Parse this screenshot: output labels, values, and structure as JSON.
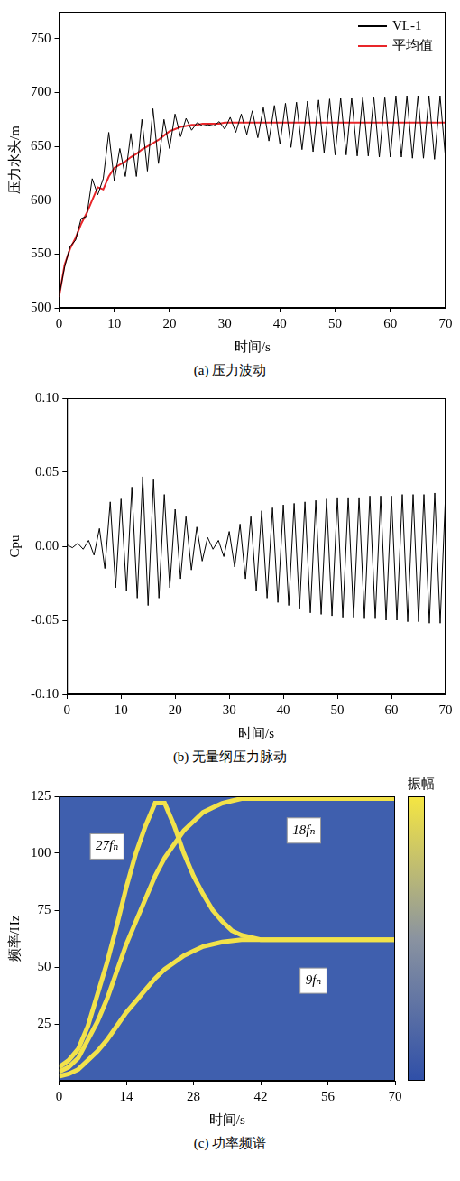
{
  "chart_data": [
    {
      "type": "line",
      "title": "(a) 压力波动",
      "xlabel": "时间/s",
      "ylabel": "压力水头/m",
      "x": [
        0,
        1,
        2,
        3,
        4,
        5,
        6,
        7,
        8,
        9,
        10,
        11,
        12,
        13,
        14,
        15,
        16,
        17,
        18,
        19,
        20,
        21,
        22,
        23,
        24,
        25,
        26,
        27,
        28,
        29,
        30,
        31,
        32,
        33,
        34,
        35,
        36,
        37,
        38,
        39,
        40,
        41,
        42,
        43,
        44,
        45,
        46,
        47,
        48,
        49,
        50,
        51,
        52,
        53,
        54,
        55,
        56,
        57,
        58,
        59,
        60,
        61,
        62,
        63,
        64,
        65,
        66,
        67,
        68,
        69,
        70
      ],
      "series": [
        {
          "name": "VL-1",
          "color": "#000000",
          "values": [
            511,
            538,
            557,
            563,
            583,
            585,
            620,
            605,
            620,
            663,
            618,
            648,
            622,
            662,
            622,
            675,
            627,
            685,
            634,
            675,
            648,
            680,
            659,
            676,
            665,
            672,
            669,
            670,
            669,
            673,
            666,
            677,
            663,
            680,
            661,
            683,
            658,
            686,
            655,
            688,
            652,
            690,
            649,
            691,
            647,
            692,
            645,
            693,
            644,
            694,
            642,
            695,
            642,
            695,
            641,
            696,
            641,
            696,
            640,
            696,
            640,
            697,
            640,
            697,
            639,
            697,
            639,
            697,
            638,
            697,
            638
          ]
        },
        {
          "name": "平均值",
          "color": "#e8262a",
          "values": [
            510,
            540,
            555,
            565,
            578,
            588,
            600,
            612,
            610,
            622,
            630,
            633,
            636,
            640,
            643,
            647,
            650,
            653,
            656,
            660,
            664,
            666,
            668,
            669,
            670,
            670,
            671,
            671,
            671,
            671,
            672,
            672,
            672,
            672,
            672,
            672,
            672,
            672,
            672,
            672,
            672,
            672,
            672,
            672,
            672,
            672,
            672,
            672,
            672,
            672,
            672,
            672,
            672,
            672,
            672,
            672,
            672,
            672,
            672,
            672,
            672,
            672,
            672,
            672,
            672,
            672,
            672,
            672,
            672,
            672,
            672
          ]
        }
      ],
      "xlim": [
        0,
        70
      ],
      "xticks": [
        0,
        10,
        20,
        30,
        40,
        50,
        60,
        70
      ],
      "ylim": [
        500,
        775
      ],
      "yticks": [
        500,
        550,
        600,
        650,
        700,
        750
      ],
      "legend": "upper right",
      "grid": false
    },
    {
      "type": "line",
      "title": "(b) 无量纲压力脉动",
      "xlabel": "时间/s",
      "ylabel": "Cpu",
      "x": [
        0,
        1,
        2,
        3,
        4,
        5,
        6,
        7,
        8,
        9,
        10,
        11,
        12,
        13,
        14,
        15,
        16,
        17,
        18,
        19,
        20,
        21,
        22,
        23,
        24,
        25,
        26,
        27,
        28,
        29,
        30,
        31,
        32,
        33,
        34,
        35,
        36,
        37,
        38,
        39,
        40,
        41,
        42,
        43,
        44,
        45,
        46,
        47,
        48,
        49,
        50,
        51,
        52,
        53,
        54,
        55,
        56,
        57,
        58,
        59,
        60,
        61,
        62,
        63,
        64,
        65,
        66,
        67,
        68,
        69,
        70
      ],
      "series": [
        {
          "color": "#000000",
          "values": [
            0.001,
            -0.001,
            0.002,
            -0.002,
            0.004,
            -0.006,
            0.012,
            -0.015,
            0.03,
            -0.028,
            0.032,
            -0.03,
            0.04,
            -0.035,
            0.047,
            -0.04,
            0.045,
            -0.035,
            0.035,
            -0.028,
            0.025,
            -0.022,
            0.02,
            -0.016,
            0.013,
            -0.01,
            0.006,
            -0.002,
            0.004,
            -0.007,
            0.01,
            -0.014,
            0.015,
            -0.022,
            0.02,
            -0.03,
            0.024,
            -0.035,
            0.026,
            -0.038,
            0.028,
            -0.04,
            0.029,
            -0.042,
            0.03,
            -0.045,
            0.031,
            -0.046,
            0.032,
            -0.047,
            0.033,
            -0.048,
            0.033,
            -0.048,
            0.033,
            -0.049,
            0.034,
            -0.049,
            0.034,
            -0.05,
            0.034,
            -0.05,
            0.035,
            -0.051,
            0.035,
            -0.051,
            0.035,
            -0.052,
            0.036,
            -0.052,
            0.036
          ]
        }
      ],
      "xlim": [
        0,
        70
      ],
      "xticks": [
        0,
        10,
        20,
        30,
        40,
        50,
        60,
        70
      ],
      "ylim": [
        -0.1,
        0.1
      ],
      "yticks": [
        {
          "value": -0.1,
          "label": "-0.10"
        },
        {
          "value": -0.05,
          "label": "-0.05"
        },
        {
          "value": 0,
          "label": "0.00"
        },
        {
          "value": 0.05,
          "label": "0.05"
        },
        {
          "value": 0.1,
          "label": "0.10"
        }
      ],
      "grid": false
    },
    {
      "type": "spectrogram",
      "title": "(c) 功率频谱",
      "xlabel": "时间/s",
      "ylabel": "频率/Hz",
      "x": [
        0,
        2,
        4,
        6,
        8,
        10,
        12,
        14,
        16,
        18,
        20,
        22,
        24,
        26,
        28,
        30,
        32,
        34,
        36,
        38,
        40,
        42,
        44,
        46,
        48,
        50,
        52,
        54,
        56,
        58,
        60,
        62,
        64,
        66,
        68,
        70
      ],
      "series": [
        {
          "color": "#f2e24a",
          "values": [
            2,
            3,
            5,
            9,
            13,
            18,
            24,
            30,
            35,
            40,
            45,
            49,
            52,
            55,
            57,
            59,
            60,
            61,
            61.5,
            62,
            62,
            62,
            62,
            62,
            62,
            62,
            62,
            62,
            62,
            62,
            62,
            62,
            62,
            62,
            62,
            62
          ]
        },
        {
          "color": "#f2e24a",
          "values": [
            4,
            6,
            10,
            18,
            26,
            36,
            48,
            60,
            70,
            80,
            90,
            98,
            104,
            110,
            114,
            118,
            120,
            122,
            123,
            124,
            124,
            124,
            124,
            124,
            124,
            124,
            124,
            124,
            124,
            124,
            124,
            124,
            124,
            124,
            124,
            124
          ]
        },
        {
          "color": "#f2e24a",
          "values": [
            6,
            9,
            14,
            24,
            38,
            52,
            68,
            85,
            100,
            112,
            122,
            122,
            112,
            100,
            90,
            82,
            75,
            70,
            66,
            64,
            63,
            62,
            62,
            62,
            62,
            62,
            62,
            62,
            62,
            62,
            62,
            62,
            62,
            62,
            62,
            62
          ]
        }
      ],
      "annotations": [
        {
          "text": "27fₙ",
          "x": 10,
          "y": 103
        },
        {
          "text": "18fₙ",
          "x": 51,
          "y": 110
        },
        {
          "text": "9fₙ",
          "x": 53,
          "y": 44
        }
      ],
      "colorbar_label": "振幅",
      "xlim": [
        0,
        70
      ],
      "xticks": [
        0,
        14,
        28,
        42,
        56,
        70
      ],
      "ylim": [
        0,
        125
      ],
      "yticks": [
        25,
        50,
        75,
        100,
        125
      ],
      "grid": false
    }
  ]
}
